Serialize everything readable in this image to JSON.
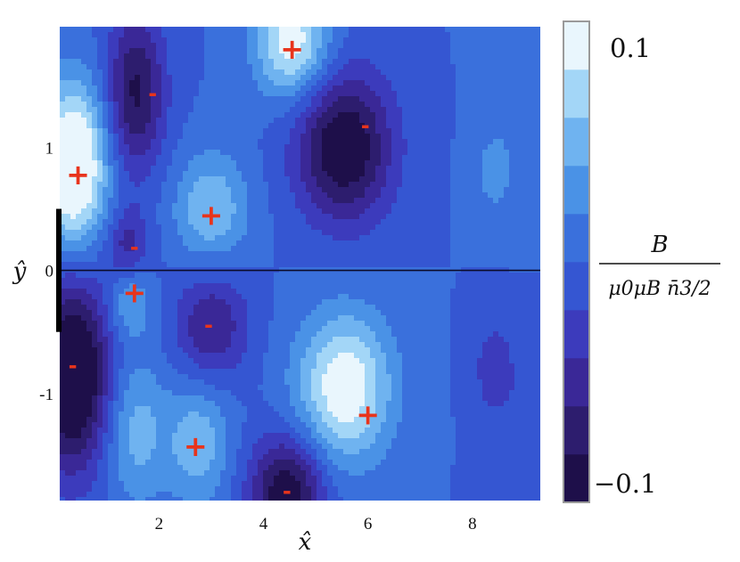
{
  "chart_data": {
    "type": "heatmap",
    "title": "",
    "xlabel": "x̂",
    "ylabel": "ŷ",
    "xlim": [
      0.1,
      9.3
    ],
    "ylim": [
      -1.87,
      1.98
    ],
    "x_ticks": [
      {
        "value": 2,
        "label": "2"
      },
      {
        "value": 4,
        "label": "4"
      },
      {
        "value": 6,
        "label": "6"
      },
      {
        "value": 8,
        "label": "8"
      }
    ],
    "y_ticks": [
      {
        "value": 1,
        "label": "1"
      },
      {
        "value": 0,
        "label": "0"
      },
      {
        "value": -1,
        "label": "-1"
      }
    ],
    "colorbar": {
      "label_numerator": "B",
      "label_denominator": "μ0μB n̄3/2",
      "max_label": "0.1",
      "min_label": "−0.1",
      "range": [
        -0.1,
        0.1
      ],
      "levels": 10,
      "colors": [
        "#1e0f4a",
        "#2d1d6e",
        "#3a2897",
        "#3c3bbc",
        "#3556d2",
        "#3a70dc",
        "#4a92e6",
        "#6fb3f0",
        "#a3d6f7",
        "#e9f6fd"
      ]
    },
    "boundary_line_y": 0,
    "left_bar_y_range": [
      -0.5,
      0.5
    ],
    "extrema": [
      {
        "x": 0.45,
        "y": 0.78,
        "sign": "+",
        "label": "+"
      },
      {
        "x": 1.88,
        "y": 1.43,
        "sign": "-",
        "label": "-"
      },
      {
        "x": 4.55,
        "y": 1.8,
        "sign": "+",
        "label": "+"
      },
      {
        "x": 5.95,
        "y": 1.17,
        "sign": "-",
        "label": "-"
      },
      {
        "x": 3.0,
        "y": 0.45,
        "sign": "+",
        "label": "+"
      },
      {
        "x": 1.53,
        "y": 0.18,
        "sign": "-",
        "label": "-"
      },
      {
        "x": 1.53,
        "y": -0.18,
        "sign": "+",
        "label": "+"
      },
      {
        "x": 2.95,
        "y": -0.45,
        "sign": "-",
        "label": "-"
      },
      {
        "x": 0.35,
        "y": -0.78,
        "sign": "-",
        "label": "-"
      },
      {
        "x": 6.0,
        "y": -1.17,
        "sign": "+",
        "label": "+"
      },
      {
        "x": 2.7,
        "y": -1.43,
        "sign": "+",
        "label": "+"
      },
      {
        "x": 4.45,
        "y": -1.8,
        "sign": "-",
        "label": "-"
      }
    ],
    "field_sources": [
      {
        "x": 0.35,
        "y": 0.85,
        "sx": 0.65,
        "sy": 0.65,
        "a": 0.13
      },
      {
        "x": 1.55,
        "y": 1.45,
        "sx": 0.55,
        "sy": 0.65,
        "a": -0.085
      },
      {
        "x": 4.55,
        "y": 1.85,
        "sx": 0.7,
        "sy": 0.45,
        "a": 0.095
      },
      {
        "x": 5.55,
        "y": 1.0,
        "sx": 0.9,
        "sy": 0.6,
        "a": -0.105
      },
      {
        "x": 3.0,
        "y": 0.5,
        "sx": 0.7,
        "sy": 0.45,
        "a": 0.06
      },
      {
        "x": 1.4,
        "y": 0.2,
        "sx": 0.4,
        "sy": 0.3,
        "a": -0.05
      },
      {
        "x": 8.4,
        "y": 0.8,
        "sx": 0.4,
        "sy": 0.4,
        "a": 0.025
      },
      {
        "x": 9.4,
        "y": 1.5,
        "sx": 0.8,
        "sy": 1.2,
        "a": 0.02
      },
      {
        "x": 0.35,
        "y": -0.85,
        "sx": 0.7,
        "sy": 0.75,
        "a": -0.13
      },
      {
        "x": 1.55,
        "y": -1.3,
        "sx": 0.6,
        "sy": 0.6,
        "a": 0.05
      },
      {
        "x": 2.75,
        "y": -1.4,
        "sx": 0.6,
        "sy": 0.5,
        "a": 0.055
      },
      {
        "x": 5.55,
        "y": -0.95,
        "sx": 0.9,
        "sy": 0.6,
        "a": 0.1
      },
      {
        "x": 4.45,
        "y": -1.8,
        "sx": 0.7,
        "sy": 0.45,
        "a": -0.1
      },
      {
        "x": 3.0,
        "y": -0.45,
        "sx": 0.7,
        "sy": 0.45,
        "a": -0.06
      },
      {
        "x": 1.45,
        "y": -0.25,
        "sx": 0.4,
        "sy": 0.3,
        "a": 0.045
      },
      {
        "x": 8.4,
        "y": -0.8,
        "sx": 0.4,
        "sy": 0.4,
        "a": -0.03
      },
      {
        "x": 9.4,
        "y": -1.5,
        "sx": 0.8,
        "sy": 1.2,
        "a": -0.02
      }
    ]
  }
}
